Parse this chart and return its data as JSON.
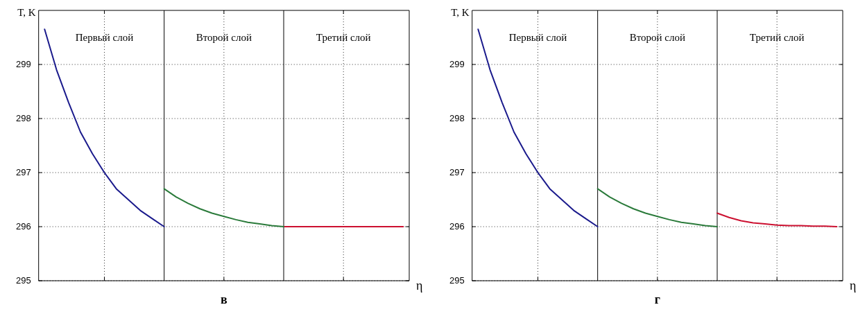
{
  "chart_data": [
    {
      "type": "line",
      "xlabel": "η",
      "ylabel": "T, K",
      "ylim": [
        295,
        300
      ],
      "categories": [
        null,
        null,
        null,
        null,
        null,
        null,
        null,
        null,
        null,
        null,
        null,
        null,
        null,
        null,
        null,
        null,
        null,
        null,
        null,
        null,
        null,
        null,
        null,
        null,
        null,
        null,
        null,
        null,
        null,
        null,
        null
      ],
      "yticks": [
        295,
        296,
        297,
        298,
        299
      ],
      "grid": true,
      "tick_labels": "y",
      "line_style": "solid",
      "annotations": [
        "Первый слой",
        "Второй слой",
        "Третий слой",
        "в"
      ],
      "series": [
        {
          "color": "#1a1a8c",
          "values": [
            299.65,
            298.9,
            298.3,
            297.75,
            297.35,
            297.0,
            296.7,
            296.5,
            296.3,
            296.15,
            296.0,
            null,
            null,
            null,
            null,
            null,
            null,
            null,
            null,
            null,
            null,
            null,
            null,
            null,
            null,
            null,
            null,
            null,
            null,
            null,
            null
          ]
        },
        {
          "color": "#2a7a3a",
          "values": [
            null,
            null,
            null,
            null,
            null,
            null,
            null,
            null,
            null,
            null,
            296.7,
            296.55,
            296.43,
            296.33,
            296.25,
            296.19,
            296.13,
            296.08,
            296.05,
            296.02,
            296.0,
            null,
            null,
            null,
            null,
            null,
            null,
            null,
            null,
            null,
            null
          ]
        },
        {
          "color": "#cc1030",
          "values": [
            null,
            null,
            null,
            null,
            null,
            null,
            null,
            null,
            null,
            null,
            null,
            null,
            null,
            null,
            null,
            null,
            null,
            null,
            null,
            null,
            296.0,
            296.0,
            296.0,
            296.0,
            296.0,
            296.0,
            296.0,
            296.0,
            296.0,
            296.0,
            296.0
          ]
        }
      ]
    },
    {
      "type": "line",
      "xlabel": "η",
      "ylabel": "T, K",
      "ylim": [
        295,
        300
      ],
      "categories": [
        null,
        null,
        null,
        null,
        null,
        null,
        null,
        null,
        null,
        null,
        null,
        null,
        null,
        null,
        null,
        null,
        null,
        null,
        null,
        null,
        null,
        null,
        null,
        null,
        null,
        null,
        null,
        null,
        null,
        null,
        null
      ],
      "yticks": [
        295,
        296,
        297,
        298,
        299
      ],
      "grid": true,
      "tick_labels": "y",
      "line_style": "solid",
      "annotations": [
        "Первый слой",
        "Второй слой",
        "Третий слой",
        "г"
      ],
      "series": [
        {
          "color": "#1a1a8c",
          "values": [
            299.65,
            298.9,
            298.3,
            297.75,
            297.35,
            297.0,
            296.7,
            296.5,
            296.3,
            296.15,
            296.0,
            null,
            null,
            null,
            null,
            null,
            null,
            null,
            null,
            null,
            null,
            null,
            null,
            null,
            null,
            null,
            null,
            null,
            null,
            null,
            null
          ]
        },
        {
          "color": "#2a7a3a",
          "values": [
            null,
            null,
            null,
            null,
            null,
            null,
            null,
            null,
            null,
            null,
            296.7,
            296.55,
            296.43,
            296.33,
            296.25,
            296.19,
            296.13,
            296.08,
            296.05,
            296.02,
            296.0,
            null,
            null,
            null,
            null,
            null,
            null,
            null,
            null,
            null,
            null
          ]
        },
        {
          "color": "#cc1030",
          "values": [
            null,
            null,
            null,
            null,
            null,
            null,
            null,
            null,
            null,
            null,
            null,
            null,
            null,
            null,
            null,
            null,
            null,
            null,
            null,
            null,
            296.25,
            296.17,
            296.11,
            296.07,
            296.05,
            296.03,
            296.02,
            296.02,
            296.01,
            296.01,
            296.0
          ]
        }
      ]
    }
  ]
}
